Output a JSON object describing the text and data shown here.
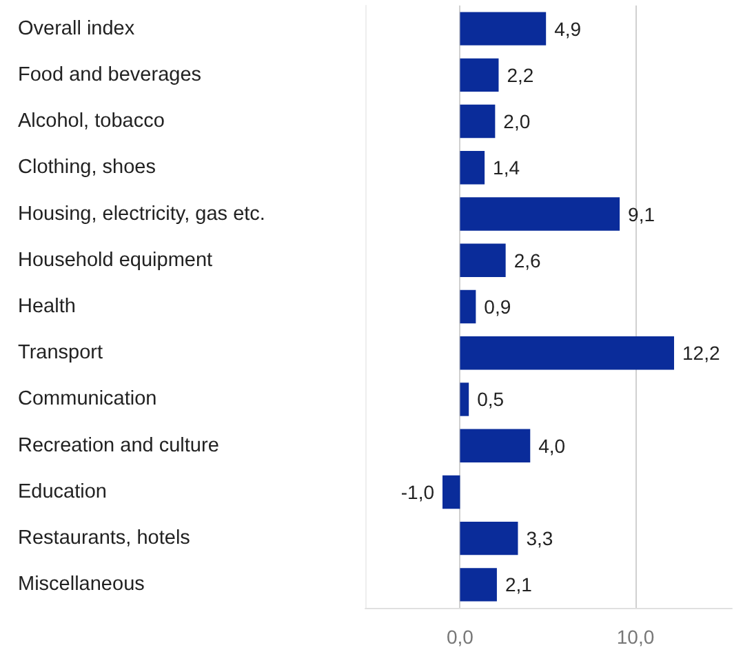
{
  "chart_data": {
    "type": "bar",
    "orientation": "horizontal",
    "categories": [
      "Overall index",
      "Food and beverages",
      "Alcohol, tobacco",
      "Clothing, shoes",
      "Housing, electricity, gas etc.",
      "Household equipment",
      "Health",
      "Transport",
      "Communication",
      "Recreation and culture",
      "Education",
      "Restaurants, hotels",
      "Miscellaneous"
    ],
    "values": [
      4.9,
      2.2,
      2.0,
      1.4,
      9.1,
      2.6,
      0.9,
      12.2,
      0.5,
      4.0,
      -1.0,
      3.3,
      2.1
    ],
    "value_labels": [
      "4,9",
      "2,2",
      "2,0",
      "1,4",
      "9,1",
      "2,6",
      "0,9",
      "12,2",
      "0,5",
      "4,0",
      "-1,0",
      "3,3",
      "2,1"
    ],
    "color": "#0a2c9a",
    "xlim": [
      -5.4,
      15.5
    ],
    "xticks": [
      {
        "value": 0,
        "label": "0,0"
      },
      {
        "value": 10,
        "label": "10,0"
      }
    ],
    "grid": "x"
  }
}
